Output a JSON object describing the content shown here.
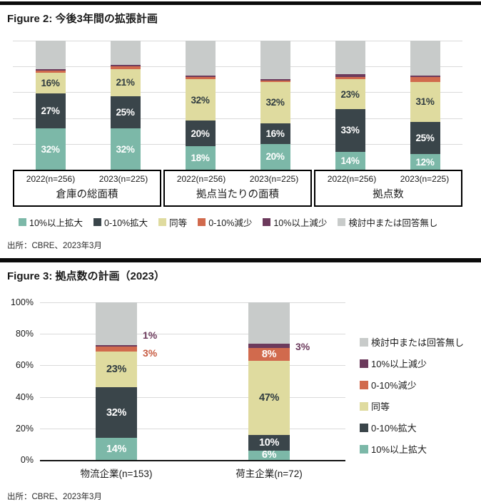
{
  "colors": {
    "expand10": "#7CB8A8",
    "expand0_10": "#3A454A",
    "same": "#DFDB9F",
    "decline0_10": "#D16A4D",
    "decline10": "#6C3A5C",
    "na": "#C8CBCA",
    "grid": "#DADADA",
    "rule_black": "#0B0B0B"
  },
  "segment_label_colors": {
    "expand10": "#FFFFFF",
    "expand0_10": "#FFFFFF",
    "same": "#2F3B40",
    "decline0_10": "#FFFFFF",
    "decline10": "#FFFFFF",
    "na": "#2F3B40"
  },
  "series_labels": {
    "expand10": "10%以上拡大",
    "expand0_10": "0-10%拡大",
    "same": "同等",
    "decline0_10": "0-10%減少",
    "decline10": "10%以上減少",
    "na": "検討中または回答無し"
  },
  "figure2": {
    "title": "Figure 2: 今後3年間の拡張計画",
    "source": "出所：CBRE、2023年3月",
    "legend": [
      {
        "key": "expand10",
        "label": "10%以上拡大"
      },
      {
        "key": "expand0_10",
        "label": "0-10%拡大"
      },
      {
        "key": "same",
        "label": "同等"
      },
      {
        "key": "decline0_10",
        "label": "0-10%減少"
      },
      {
        "key": "decline10",
        "label": "10%以上減少"
      },
      {
        "key": "na",
        "label": "検討中または回答無し"
      }
    ],
    "chart_data": {
      "type": "stacked_bar",
      "unit": "%",
      "ylim": [
        0,
        100
      ],
      "grid_step": 20,
      "stack_order": [
        "expand10",
        "expand0_10",
        "same",
        "decline0_10",
        "decline10",
        "na"
      ],
      "groups": [
        {
          "label": "倉庫の総面積",
          "bars": [
            {
              "label": "2022(n=256)",
              "values": {
                "expand10": 32,
                "expand0_10": 27,
                "same": 16,
                "decline0_10": 2,
                "decline10": 1,
                "na": 22
              },
              "show_labels": [
                "expand10",
                "expand0_10",
                "same"
              ]
            },
            {
              "label": "2023(n=225)",
              "values": {
                "expand10": 32,
                "expand0_10": 25,
                "same": 21,
                "decline0_10": 2,
                "decline10": 1,
                "na": 19
              },
              "show_labels": [
                "expand10",
                "expand0_10",
                "same"
              ]
            }
          ]
        },
        {
          "label": "拠点当たりの面積",
          "bars": [
            {
              "label": "2022(n=256)",
              "values": {
                "expand10": 18,
                "expand0_10": 20,
                "same": 32,
                "decline0_10": 2,
                "decline10": 1,
                "na": 27
              },
              "show_labels": [
                "expand10",
                "expand0_10",
                "same"
              ]
            },
            {
              "label": "2023(n=225)",
              "values": {
                "expand10": 20,
                "expand0_10": 16,
                "same": 32,
                "decline0_10": 1,
                "decline10": 1,
                "na": 30
              },
              "show_labels": [
                "expand10",
                "expand0_10",
                "same"
              ]
            }
          ]
        },
        {
          "label": "拠点数",
          "bars": [
            {
              "label": "2022(n=256)",
              "values": {
                "expand10": 14,
                "expand0_10": 33,
                "same": 23,
                "decline0_10": 2,
                "decline10": 2,
                "na": 26
              },
              "show_labels": [
                "expand10",
                "expand0_10",
                "same"
              ]
            },
            {
              "label": "2023(n=225)",
              "values": {
                "expand10": 12,
                "expand0_10": 25,
                "same": 31,
                "decline0_10": 4,
                "decline10": 1,
                "na": 27
              },
              "show_labels": [
                "expand10",
                "expand0_10",
                "same"
              ]
            }
          ]
        }
      ]
    }
  },
  "figure3": {
    "title": "Figure 3: 拠点数の計画（2023）",
    "source": "出所：CBRE、2023年3月",
    "y_ticks": [
      "0%",
      "20%",
      "40%",
      "60%",
      "80%",
      "100%"
    ],
    "legend": [
      {
        "key": "na",
        "label": "検討中または回答無し"
      },
      {
        "key": "decline10",
        "label": "10%以上減少"
      },
      {
        "key": "decline0_10",
        "label": "0-10%減少"
      },
      {
        "key": "same",
        "label": "同等"
      },
      {
        "key": "expand0_10",
        "label": "0-10%拡大"
      },
      {
        "key": "expand10",
        "label": "10%以上拡大"
      }
    ],
    "chart_data": {
      "type": "stacked_bar",
      "unit": "%",
      "ylim": [
        0,
        100
      ],
      "grid_step": 20,
      "stack_order": [
        "expand10",
        "expand0_10",
        "same",
        "decline0_10",
        "decline10",
        "na"
      ],
      "bars": [
        {
          "label": "物流企業(n=153)",
          "values": {
            "expand10": 14,
            "expand0_10": 32,
            "same": 23,
            "decline0_10": 3,
            "decline10": 1,
            "na": 27
          },
          "show_labels": [
            "expand10",
            "expand0_10",
            "same"
          ],
          "callouts": [
            {
              "text": "1%",
              "color": "#6C3A5C",
              "y_pct": 79
            },
            {
              "text": "3%",
              "color": "#C75B41",
              "y_pct": 68
            }
          ]
        },
        {
          "label": "荷主企業(n=72)",
          "values": {
            "expand10": 6,
            "expand0_10": 10,
            "same": 47,
            "decline0_10": 8,
            "decline10": 3,
            "na": 26
          },
          "show_labels": [
            "expand10",
            "expand0_10",
            "same",
            "decline0_10"
          ],
          "callouts": [
            {
              "text": "3%",
              "color": "#6C3A5C",
              "y_pct": 72
            }
          ]
        }
      ]
    }
  }
}
